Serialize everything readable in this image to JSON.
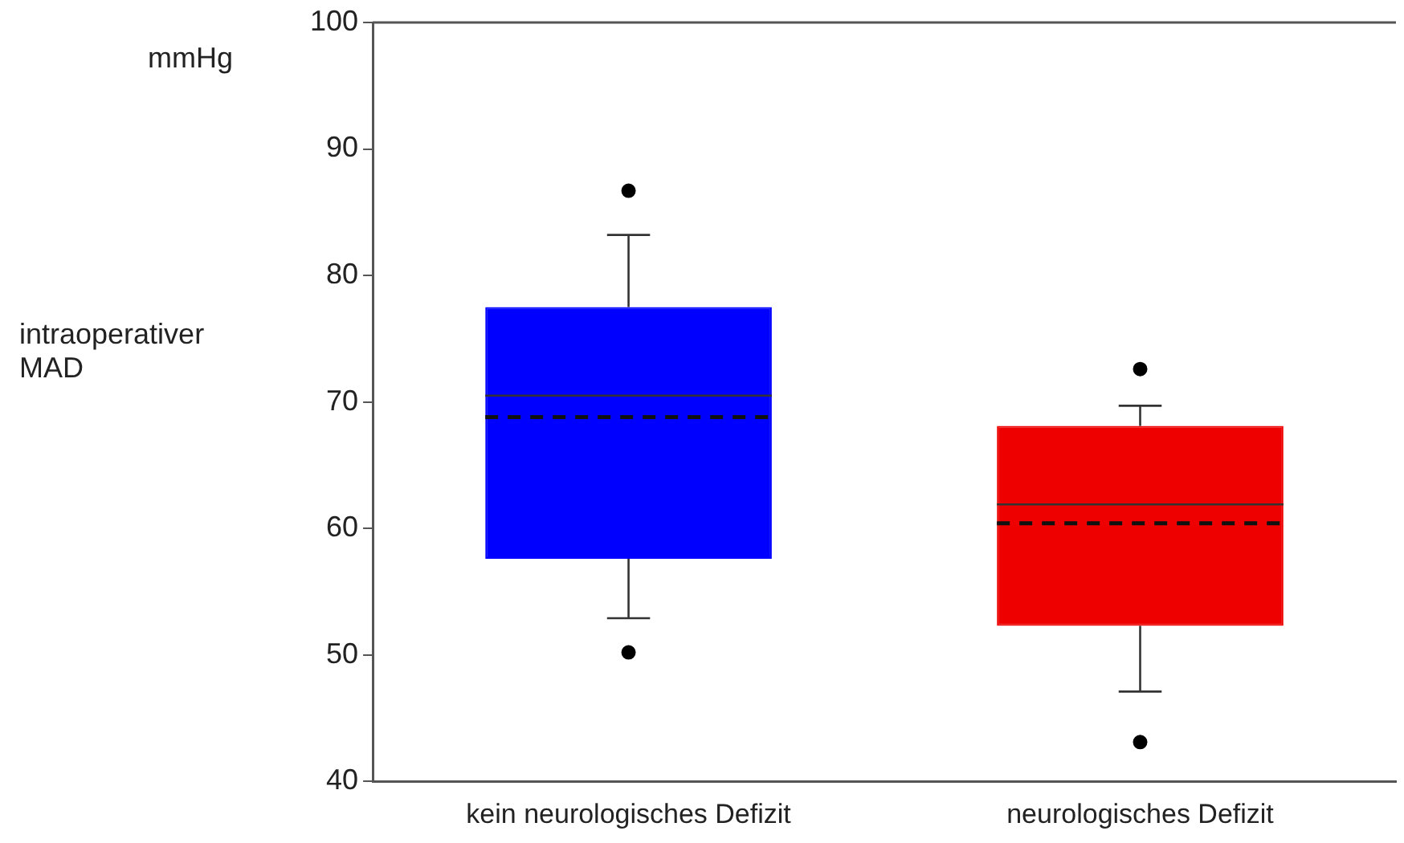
{
  "chart_data": {
    "type": "box",
    "ylabel": "intraoperativer MAD",
    "annotations": [
      "mmHg"
    ],
    "categories": [
      "kein neurologisches Defizit",
      "neurologisches Defizit"
    ],
    "colors": [
      "#0000ff",
      "#ee0000"
    ],
    "boxes": [
      {
        "low": 52.9,
        "q1": 57.6,
        "median": 70.5,
        "q3": 77.5,
        "high": 83.2,
        "mean": 68.8,
        "outliers": [
          86.7,
          50.2
        ]
      },
      {
        "low": 47.1,
        "q1": 52.3,
        "median": 61.9,
        "q3": 68.1,
        "high": 69.7,
        "mean": 60.4,
        "outliers": [
          72.6,
          43.1
        ]
      }
    ],
    "ylim": [
      40,
      100
    ],
    "yticks": [
      40,
      50,
      60,
      70,
      80,
      90,
      100
    ],
    "grid": false,
    "legend": false,
    "line_style": "dashed"
  }
}
